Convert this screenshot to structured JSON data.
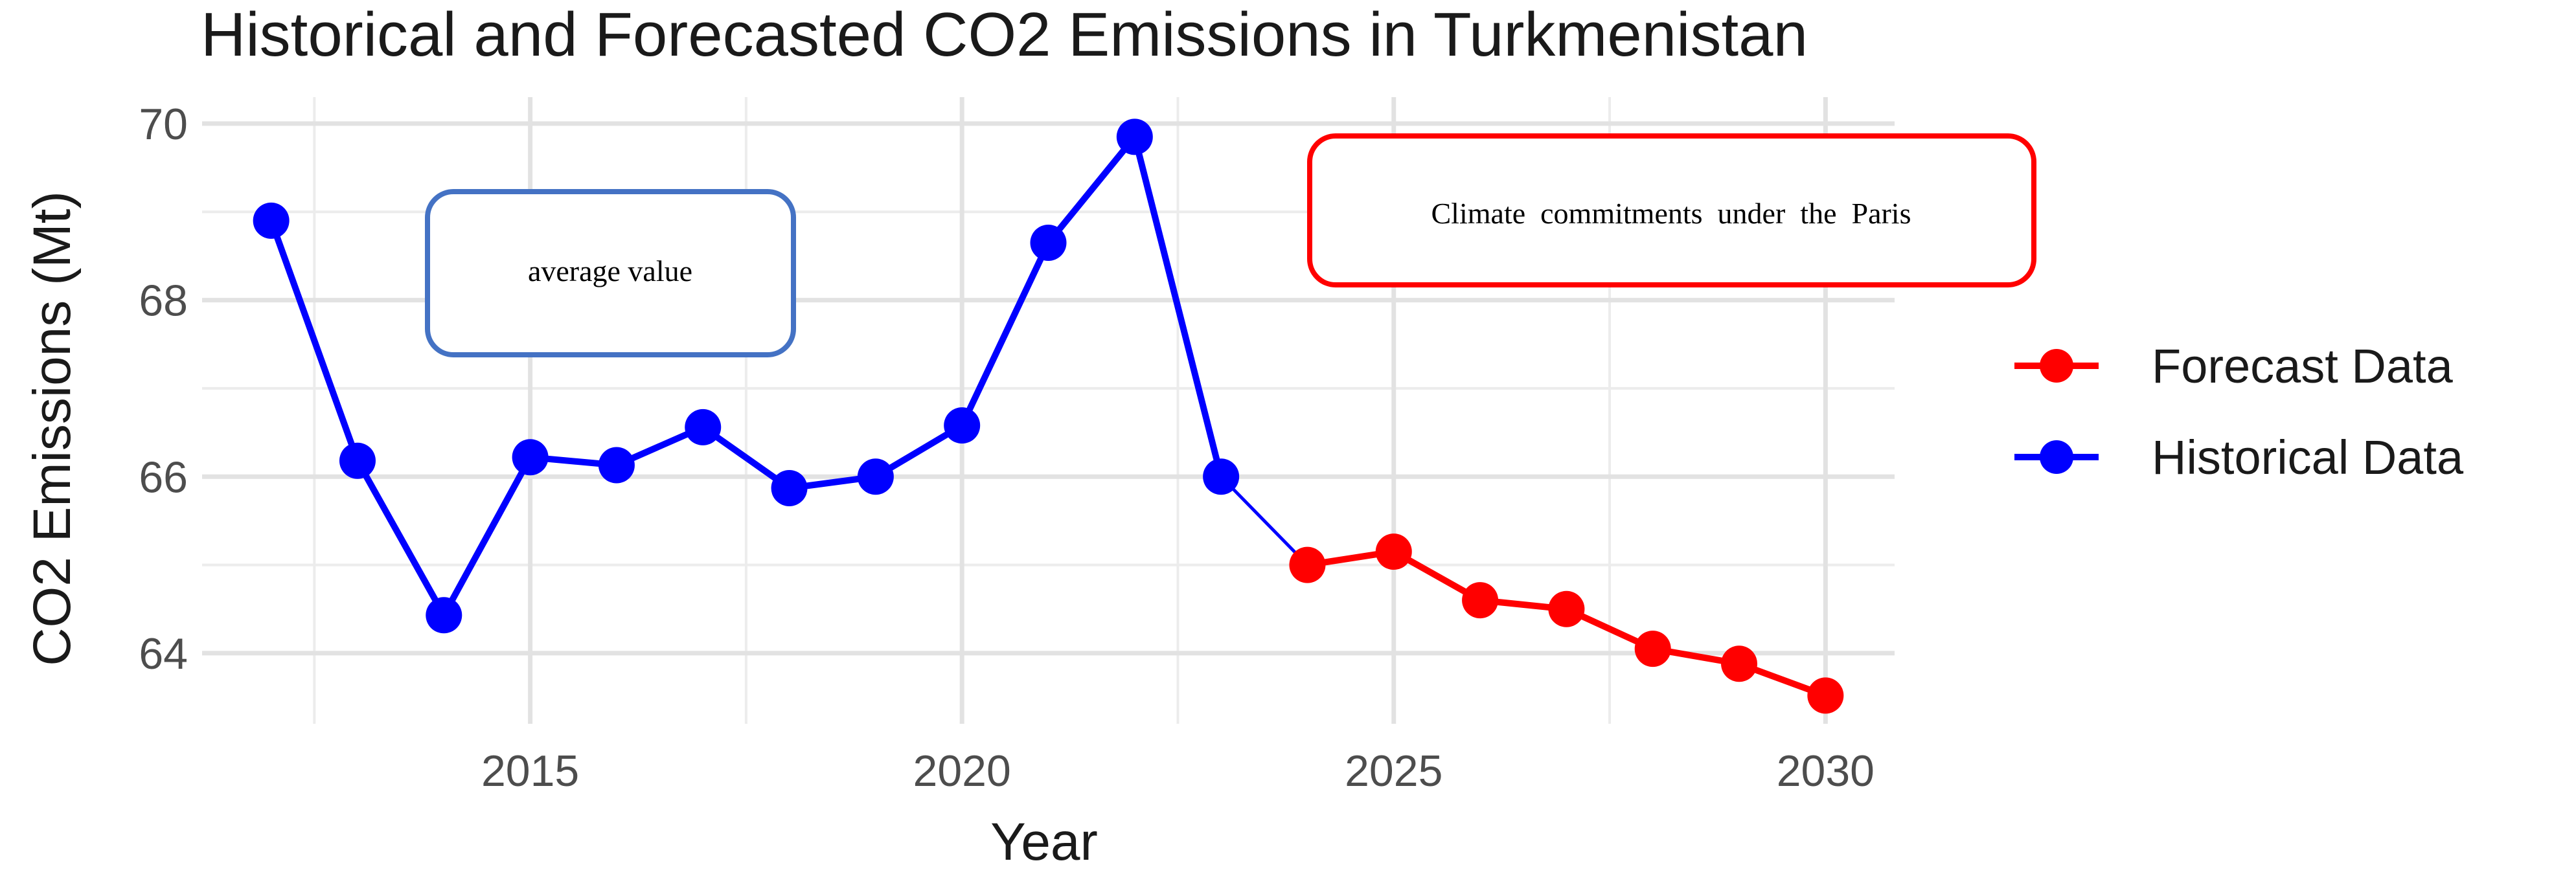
{
  "chart_data": {
    "type": "line",
    "title": "Historical and Forecasted CO2 Emissions in Turkmenistan",
    "xlabel": "Year",
    "ylabel": "CO2 Emissions (Mt)",
    "xlim": [
      2011.2,
      2030.8
    ],
    "ylim": [
      63.2,
      70.3
    ],
    "x_ticks": [
      2015,
      2020,
      2025,
      2030
    ],
    "x_minor_ticks": [
      2012.5,
      2017.5,
      2022.5,
      2027.5
    ],
    "y_ticks": [
      64,
      66,
      68,
      70
    ],
    "y_minor_ticks": [
      65,
      67,
      69
    ],
    "grid": true,
    "legend_position": "right",
    "series": [
      {
        "name": "Forecast Data",
        "color": "#ff0000",
        "x": [
          2024,
          2025,
          2026,
          2027,
          2028,
          2029,
          2030
        ],
        "values": [
          65.0,
          65.15,
          64.6,
          64.5,
          64.05,
          63.88,
          63.52
        ]
      },
      {
        "name": "Historical Data",
        "color": "#0000ff",
        "x": [
          2012,
          2013,
          2014,
          2015,
          2016,
          2017,
          2018,
          2019,
          2020,
          2021,
          2022,
          2023
        ],
        "values": [
          68.9,
          66.18,
          64.43,
          66.22,
          66.13,
          66.56,
          65.87,
          66.0,
          66.58,
          68.65,
          69.85,
          66.0
        ]
      }
    ],
    "connector": {
      "from": [
        2023,
        66.0
      ],
      "to": [
        2024,
        65.0
      ],
      "color": "#0000ff"
    },
    "annotations": [
      {
        "text": "average value",
        "border_color": "#4472c4"
      },
      {
        "text": "Climate  commitments  under  the  Paris",
        "border_color": "#ff0000"
      }
    ]
  }
}
